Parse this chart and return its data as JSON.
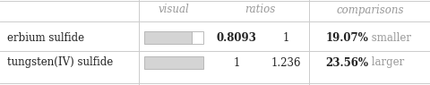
{
  "rows": [
    {
      "name": "erbium sulfide",
      "ratio1": "0.8093",
      "ratio2": "1",
      "comparison_pct": "19.07%",
      "comparison_word": " smaller",
      "bar_ratio": 0.8093
    },
    {
      "name": "tungsten(IV) sulfide",
      "ratio1": "1",
      "ratio2": "1.236",
      "comparison_pct": "23.56%",
      "comparison_word": " larger",
      "bar_ratio": 1.0
    }
  ],
  "headers": [
    "visual",
    "ratios",
    "comparisons"
  ],
  "bg_color": "#ffffff",
  "bar_fill": "#d4d4d4",
  "bar_edge": "#b0b0b0",
  "bar_ref_fill": "#ffffff",
  "bar_ref_edge": "#b0b0b0",
  "header_color": "#999999",
  "name_color": "#222222",
  "pct_color": "#222222",
  "word_color": "#999999",
  "grid_color": "#cccccc",
  "font_size": 8.5,
  "header_font_size": 8.5
}
